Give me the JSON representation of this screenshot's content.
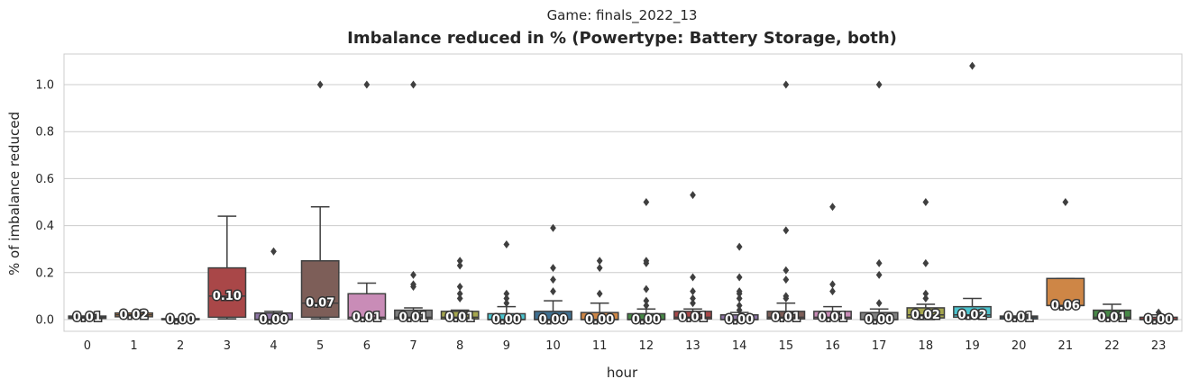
{
  "suptitle": "Game: finals_2022_13",
  "chart_data": {
    "type": "box",
    "title": "Imbalance reduced in % (Powertype: Battery Storage, both)",
    "xlabel": "hour",
    "ylabel": "% of imbalance reduced",
    "ylim": [
      -0.05,
      1.13
    ],
    "yticks": [
      "0.0",
      "0.2",
      "0.4",
      "0.6",
      "0.8",
      "1.0"
    ],
    "grid": true,
    "categories": [
      "0",
      "1",
      "2",
      "3",
      "4",
      "5",
      "6",
      "7",
      "8",
      "9",
      "10",
      "11",
      "12",
      "13",
      "14",
      "15",
      "16",
      "17",
      "18",
      "19",
      "20",
      "21",
      "22",
      "23"
    ],
    "boxes": [
      {
        "q1": 0.005,
        "med": 0.01,
        "q3": 0.015,
        "wlo": 0.005,
        "whi": 0.015,
        "fliers": [],
        "label": "0.01",
        "color": "#3274a1"
      },
      {
        "q1": 0.012,
        "med": 0.02,
        "q3": 0.028,
        "wlo": 0.012,
        "whi": 0.028,
        "fliers": [],
        "label": "0.02",
        "color": "#e1812c"
      },
      {
        "q1": 0.0,
        "med": 0.0,
        "q3": 0.004,
        "wlo": 0.0,
        "whi": 0.004,
        "fliers": [],
        "label": "0.00",
        "color": "#3a923a"
      },
      {
        "q1": 0.01,
        "med": 0.1,
        "q3": 0.22,
        "wlo": 0.003,
        "whi": 0.44,
        "fliers": [],
        "label": "0.10",
        "color": "#c03d3e"
      },
      {
        "q1": 0.0,
        "med": 0.0,
        "q3": 0.028,
        "wlo": 0.0,
        "whi": 0.035,
        "fliers": [
          0.29
        ],
        "label": "0.00",
        "color": "#9372b2"
      },
      {
        "q1": 0.01,
        "med": 0.07,
        "q3": 0.25,
        "wlo": 0.003,
        "whi": 0.48,
        "fliers": [
          1.0
        ],
        "label": "0.07",
        "color": "#845b53"
      },
      {
        "q1": 0.003,
        "med": 0.01,
        "q3": 0.11,
        "wlo": 0.0,
        "whi": 0.155,
        "fliers": [
          1.0
        ],
        "label": "0.01",
        "color": "#d684bd"
      },
      {
        "q1": 0.003,
        "med": 0.01,
        "q3": 0.04,
        "wlo": 0.0,
        "whi": 0.05,
        "fliers": [
          0.14,
          0.15,
          0.19,
          1.0
        ],
        "label": "0.01",
        "color": "#7f7f7f"
      },
      {
        "q1": 0.003,
        "med": 0.01,
        "q3": 0.035,
        "wlo": 0.0,
        "whi": 0.04,
        "fliers": [
          0.09,
          0.11,
          0.14,
          0.23,
          0.25
        ],
        "label": "0.01",
        "color": "#a9aa35"
      },
      {
        "q1": 0.0,
        "med": 0.0,
        "q3": 0.025,
        "wlo": 0.0,
        "whi": 0.055,
        "fliers": [
          0.07,
          0.09,
          0.11,
          0.32
        ],
        "label": "0.00",
        "color": "#2ed0dd"
      },
      {
        "q1": 0.0,
        "med": 0.0,
        "q3": 0.035,
        "wlo": 0.0,
        "whi": 0.08,
        "fliers": [
          0.12,
          0.17,
          0.22,
          0.39
        ],
        "label": "0.00",
        "color": "#3274a1"
      },
      {
        "q1": 0.0,
        "med": 0.0,
        "q3": 0.03,
        "wlo": 0.0,
        "whi": 0.07,
        "fliers": [
          0.11,
          0.22,
          0.25
        ],
        "label": "0.00",
        "color": "#e1812c"
      },
      {
        "q1": 0.0,
        "med": 0.0,
        "q3": 0.025,
        "wlo": 0.0,
        "whi": 0.045,
        "fliers": [
          0.06,
          0.08,
          0.13,
          0.24,
          0.25,
          0.5
        ],
        "label": "0.00",
        "color": "#3a923a"
      },
      {
        "q1": 0.003,
        "med": 0.01,
        "q3": 0.035,
        "wlo": 0.0,
        "whi": 0.045,
        "fliers": [
          0.07,
          0.09,
          0.12,
          0.18,
          0.53
        ],
        "label": "0.01",
        "color": "#c03d3e"
      },
      {
        "q1": 0.0,
        "med": 0.0,
        "q3": 0.02,
        "wlo": 0.0,
        "whi": 0.03,
        "fliers": [
          0.04,
          0.06,
          0.09,
          0.11,
          0.12,
          0.18,
          0.31
        ],
        "label": "0.00",
        "color": "#9372b2"
      },
      {
        "q1": 0.003,
        "med": 0.01,
        "q3": 0.035,
        "wlo": 0.0,
        "whi": 0.07,
        "fliers": [
          0.09,
          0.1,
          0.17,
          0.21,
          0.38,
          1.0
        ],
        "label": "0.01",
        "color": "#845b53"
      },
      {
        "q1": 0.003,
        "med": 0.01,
        "q3": 0.035,
        "wlo": 0.0,
        "whi": 0.055,
        "fliers": [
          0.12,
          0.15,
          0.48
        ],
        "label": "0.01",
        "color": "#d684bd"
      },
      {
        "q1": 0.0,
        "med": 0.0,
        "q3": 0.03,
        "wlo": 0.0,
        "whi": 0.045,
        "fliers": [
          0.07,
          0.19,
          0.24,
          1.0
        ],
        "label": "0.00",
        "color": "#7f7f7f"
      },
      {
        "q1": 0.007,
        "med": 0.02,
        "q3": 0.05,
        "wlo": 0.0,
        "whi": 0.065,
        "fliers": [
          0.09,
          0.11,
          0.24,
          0.5
        ],
        "label": "0.02",
        "color": "#a9aa35"
      },
      {
        "q1": 0.01,
        "med": 0.02,
        "q3": 0.055,
        "wlo": 0.003,
        "whi": 0.09,
        "fliers": [
          1.08
        ],
        "label": "0.02",
        "color": "#2ed0dd"
      },
      {
        "q1": 0.003,
        "med": 0.01,
        "q3": 0.015,
        "wlo": 0.003,
        "whi": 0.015,
        "fliers": [],
        "label": "0.01",
        "color": "#3274a1"
      },
      {
        "q1": 0.06,
        "med": 0.06,
        "q3": 0.175,
        "wlo": 0.06,
        "whi": 0.175,
        "fliers": [
          0.5
        ],
        "label": "0.06",
        "color": "#e1812c"
      },
      {
        "q1": 0.003,
        "med": 0.01,
        "q3": 0.04,
        "wlo": 0.0,
        "whi": 0.065,
        "fliers": [],
        "label": "0.01",
        "color": "#3a923a"
      },
      {
        "q1": 0.0,
        "med": 0.0,
        "q3": 0.01,
        "wlo": 0.0,
        "whi": 0.02,
        "fliers": [
          0.03
        ],
        "label": "0.00",
        "color": "#c03d3e"
      }
    ]
  }
}
